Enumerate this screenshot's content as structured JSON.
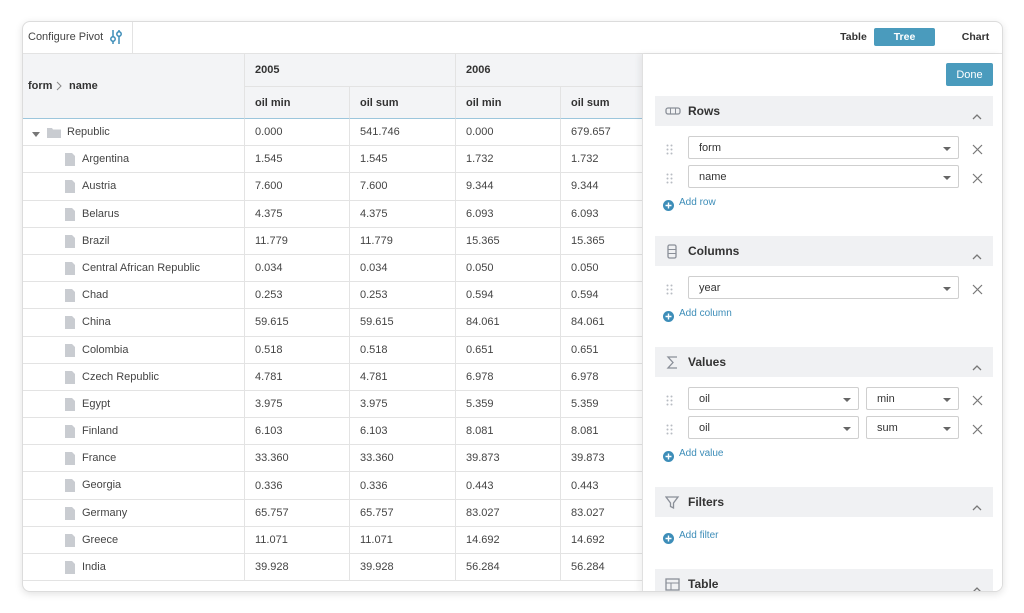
{
  "toolbar": {
    "title": "Configure Pivot",
    "tabs": [
      "Table",
      "Tree",
      "Chart"
    ],
    "active_tab": 1
  },
  "table": {
    "breadcrumb": [
      "form",
      "name"
    ],
    "years": [
      "2005",
      "2006"
    ],
    "measures": [
      "oil min",
      "oil sum",
      "oil min",
      "oil sum"
    ],
    "rows": [
      {
        "label": "Republic",
        "values": [
          "0.000",
          "541.746",
          "0.000",
          "679.657"
        ]
      },
      {
        "label": "Argentina",
        "values": [
          "1.545",
          "1.545",
          "1.732",
          "1.732"
        ]
      },
      {
        "label": "Austria",
        "values": [
          "7.600",
          "7.600",
          "9.344",
          "9.344"
        ]
      },
      {
        "label": "Belarus",
        "values": [
          "4.375",
          "4.375",
          "6.093",
          "6.093"
        ]
      },
      {
        "label": "Brazil",
        "values": [
          "11.779",
          "11.779",
          "15.365",
          "15.365"
        ]
      },
      {
        "label": "Central African Republic",
        "values": [
          "0.034",
          "0.034",
          "0.050",
          "0.050"
        ]
      },
      {
        "label": "Chad",
        "values": [
          "0.253",
          "0.253",
          "0.594",
          "0.594"
        ]
      },
      {
        "label": "China",
        "values": [
          "59.615",
          "59.615",
          "84.061",
          "84.061"
        ]
      },
      {
        "label": "Colombia",
        "values": [
          "0.518",
          "0.518",
          "0.651",
          "0.651"
        ]
      },
      {
        "label": "Czech Republic",
        "values": [
          "4.781",
          "4.781",
          "6.978",
          "6.978"
        ]
      },
      {
        "label": "Egypt",
        "values": [
          "3.975",
          "3.975",
          "5.359",
          "5.359"
        ]
      },
      {
        "label": "Finland",
        "values": [
          "6.103",
          "6.103",
          "8.081",
          "8.081"
        ]
      },
      {
        "label": "France",
        "values": [
          "33.360",
          "33.360",
          "39.873",
          "39.873"
        ]
      },
      {
        "label": "Georgia",
        "values": [
          "0.336",
          "0.336",
          "0.443",
          "0.443"
        ]
      },
      {
        "label": "Germany",
        "values": [
          "65.757",
          "65.757",
          "83.027",
          "83.027"
        ]
      },
      {
        "label": "Greece",
        "values": [
          "11.071",
          "11.071",
          "14.692",
          "14.692"
        ]
      },
      {
        "label": "India",
        "values": [
          "39.928",
          "39.928",
          "56.284",
          "56.284"
        ]
      }
    ]
  },
  "panel": {
    "done": "Done",
    "sections": [
      {
        "title": "Rows",
        "fields": [
          [
            "form"
          ],
          [
            "name"
          ]
        ],
        "add": "Add row"
      },
      {
        "title": "Columns",
        "fields": [
          [
            "year"
          ]
        ],
        "add": "Add column"
      },
      {
        "title": "Values",
        "fields": [
          [
            "oil",
            "min"
          ],
          [
            "oil",
            "sum"
          ]
        ],
        "add": "Add value"
      },
      {
        "title": "Filters",
        "add": "Add filter"
      },
      {
        "title": "Table"
      }
    ]
  }
}
